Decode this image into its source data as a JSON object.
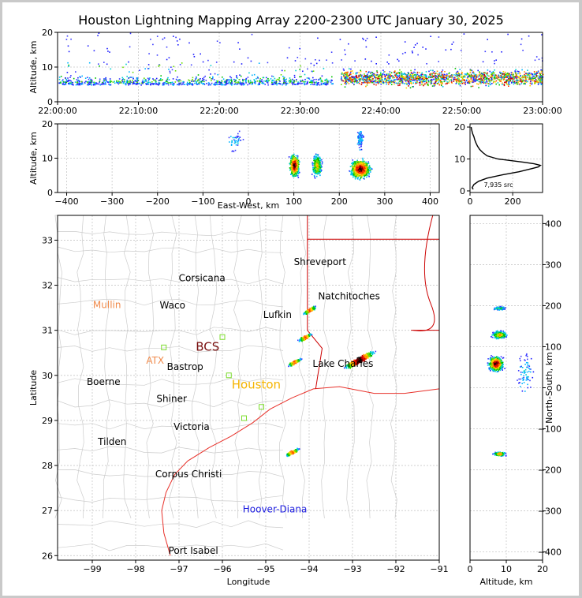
{
  "title": "Houston Lightning Mapping Array 2200-2300 UTC January 30, 2025",
  "colors": {
    "frame": "#000000",
    "grid": "#c8c8c8",
    "coast": "#e8312a",
    "border": "#cc0000",
    "county": "#cccccc"
  },
  "panels": {
    "time_height": {
      "ylabel": "Altitude, km",
      "yticks": [
        "0",
        "10",
        "20"
      ],
      "xticks": [
        "22:00:00",
        "22:10:00",
        "22:20:00",
        "22:30:00",
        "22:40:00",
        "22:50:00",
        "23:00:00"
      ]
    },
    "ew_height": {
      "ylabel": "Altitude, km",
      "xlabel": "East-West, km",
      "yticks": [
        "0",
        "10",
        "20"
      ],
      "xticks": [
        "−400",
        "−300",
        "−200",
        "−100",
        "0",
        "100",
        "200",
        "300",
        "400"
      ]
    },
    "histogram": {
      "yticks": [
        "0",
        "10",
        "20"
      ],
      "xticks": [
        "0",
        "200"
      ],
      "note": "7,935 src"
    },
    "plan": {
      "xlabel": "Longitude",
      "ylabel": "Latitude",
      "xticks": [
        "−99",
        "−98",
        "−97",
        "−96",
        "−95",
        "−94",
        "−93",
        "−92",
        "−91"
      ],
      "yticks": [
        "26",
        "27",
        "28",
        "29",
        "30",
        "31",
        "32",
        "33"
      ],
      "cities": [
        {
          "name": "Shreveport",
          "lon": -93.75,
          "lat": 32.52,
          "color": "#000000"
        },
        {
          "name": "Corsicana",
          "lon": -96.47,
          "lat": 32.16,
          "color": "#000000"
        },
        {
          "name": "Natchitoches",
          "lon": -93.08,
          "lat": 31.76,
          "color": "#000000"
        },
        {
          "name": "Mullin",
          "lon": -98.66,
          "lat": 31.56,
          "color": "#f08a4b"
        },
        {
          "name": "Waco",
          "lon": -97.15,
          "lat": 31.55,
          "color": "#000000"
        },
        {
          "name": "Lufkin",
          "lon": -94.73,
          "lat": 31.34,
          "color": "#000000"
        },
        {
          "name": "BCS",
          "lon": -96.34,
          "lat": 30.62,
          "color": "#7a1010"
        },
        {
          "name": "ATX",
          "lon": -97.55,
          "lat": 30.33,
          "color": "#f08a4b"
        },
        {
          "name": "Bastrop",
          "lon": -96.86,
          "lat": 30.19,
          "color": "#000000"
        },
        {
          "name": "Lake Charles",
          "lon": -93.22,
          "lat": 30.26,
          "color": "#000000"
        },
        {
          "name": "Houston",
          "lon": -95.22,
          "lat": 29.78,
          "color": "#f5b400"
        },
        {
          "name": "Boerne",
          "lon": -98.74,
          "lat": 29.86,
          "color": "#000000"
        },
        {
          "name": "Shiner",
          "lon": -97.17,
          "lat": 29.48,
          "color": "#000000"
        },
        {
          "name": "Victoria",
          "lon": -96.71,
          "lat": 28.86,
          "color": "#000000"
        },
        {
          "name": "Tilden",
          "lon": -98.54,
          "lat": 28.53,
          "color": "#000000"
        },
        {
          "name": "Corpus Christi",
          "lon": -96.78,
          "lat": 27.81,
          "color": "#000000"
        },
        {
          "name": "Hoover-Diana",
          "lon": -94.79,
          "lat": 27.03,
          "color": "#1a1adf"
        },
        {
          "name": "Port Isabel",
          "lon": -96.67,
          "lat": 26.11,
          "color": "#000000"
        }
      ]
    },
    "ns_height": {
      "xlabel": "Altitude, km",
      "ylabel": "North-South, km",
      "xticks": [
        "0",
        "10",
        "20"
      ],
      "yticks": [
        "−400",
        "−300",
        "−200",
        "−100",
        "0",
        "100",
        "200",
        "300",
        "400"
      ]
    }
  },
  "chart_data": {
    "type": "scatter",
    "title": "Houston Lightning Mapping Array 2200-2300 UTC January 30, 2025",
    "total_sources": 7935,
    "panels": [
      {
        "name": "altitude_vs_time",
        "xlim": [
          "22:00:00",
          "23:00:00"
        ],
        "ylim": [
          0,
          20
        ],
        "xlabel": "",
        "ylabel": "Altitude, km"
      },
      {
        "name": "altitude_vs_east_west",
        "xlim": [
          -420,
          420
        ],
        "ylim": [
          0,
          20
        ],
        "xlabel": "East-West, km",
        "ylabel": "Altitude, km"
      },
      {
        "name": "altitude_histogram",
        "xlim": [
          0,
          340
        ],
        "ylim": [
          0,
          21
        ],
        "xlabel": "",
        "ylabel": ""
      },
      {
        "name": "plan_view",
        "xlim": [
          -99.8,
          -91
        ],
        "ylim": [
          25.9,
          33.55
        ],
        "xlabel": "Longitude",
        "ylabel": "Latitude"
      },
      {
        "name": "north_south_vs_altitude",
        "xlim": [
          0,
          20
        ],
        "ylim": [
          -420,
          420
        ],
        "xlabel": "Altitude, km",
        "ylabel": "North-South, km"
      }
    ],
    "storm_cells": [
      {
        "lon": -94.0,
        "lat": 31.45,
        "ew_km": 150,
        "ns_km": 200,
        "alt_km": 7
      },
      {
        "lon": -94.1,
        "lat": 30.85,
        "ew_km": 150,
        "ns_km": 130,
        "alt_km": 8
      },
      {
        "lon": -94.35,
        "lat": 30.3,
        "ew_km": 100,
        "ns_km": 70,
        "alt_km": 7
      },
      {
        "lon": -92.85,
        "lat": 30.35,
        "ew_km": 245,
        "ns_km": 60,
        "alt_km": 6
      },
      {
        "lon": -94.4,
        "lat": 28.3,
        "ew_km": 100,
        "ns_km": -160,
        "alt_km": 8
      }
    ],
    "altitude_histogram": {
      "alt_km": [
        0.5,
        1,
        2,
        3,
        4,
        5,
        6,
        7,
        7.5,
        8,
        8.5,
        9,
        10,
        11,
        12,
        13,
        14,
        15,
        16,
        17,
        18,
        19,
        20
      ],
      "counts": [
        15,
        10,
        18,
        40,
        80,
        150,
        230,
        290,
        320,
        330,
        300,
        250,
        130,
        80,
        60,
        45,
        35,
        28,
        22,
        18,
        12,
        8,
        5
      ]
    }
  }
}
